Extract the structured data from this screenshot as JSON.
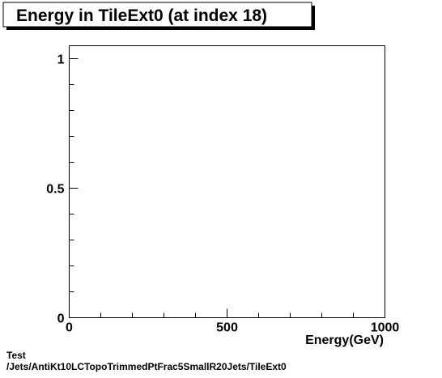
{
  "chart_data": {
    "type": "bar",
    "title": "Energy in TileExt0 (at index 18)",
    "xlabel": "Energy(GeV)",
    "ylabel": "",
    "xlim": [
      0,
      1000
    ],
    "ylim": [
      0,
      1.05
    ],
    "x_ticks": [
      {
        "value": 0,
        "label": "0"
      },
      {
        "value": 500,
        "label": "500"
      },
      {
        "value": 1000,
        "label": "1000"
      }
    ],
    "y_ticks": [
      {
        "value": 0,
        "label": "0"
      },
      {
        "value": 0.5,
        "label": "0.5"
      },
      {
        "value": 1,
        "label": "1"
      }
    ],
    "x_minor_step": 100,
    "y_minor_step": 0.1,
    "series": [],
    "grid": false,
    "legend": "none"
  },
  "footer": {
    "line1": "Test",
    "line2": "/Jets/AntiKt10LCTopoTrimmedPtFrac5SmallR20Jets/TileExt0"
  },
  "colors": {
    "background": "#ffffff",
    "frame": "#000000",
    "title_box_fill": "#ffffff",
    "text": "#000000"
  }
}
